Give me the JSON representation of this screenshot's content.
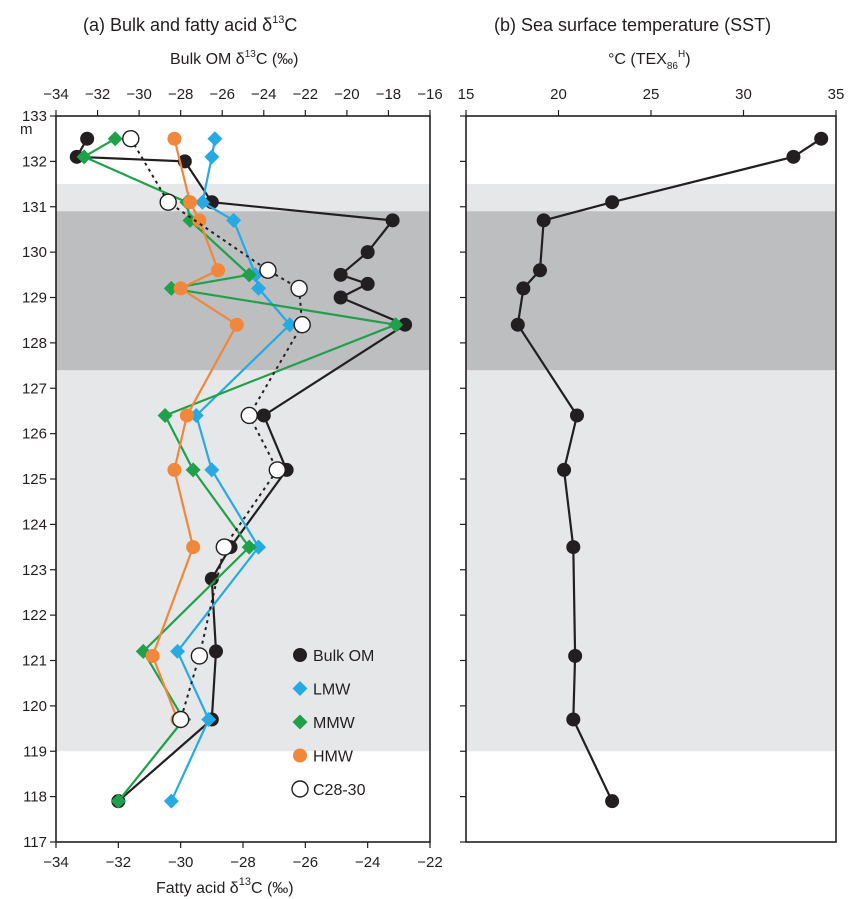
{
  "panel_a": {
    "title": "(a) Bulk and fatty acid δ",
    "title_sup": "13",
    "title_end": "C",
    "top_axis_label": "Bulk OM δ",
    "top_axis_sup": "13",
    "top_axis_end": "C (‰)",
    "bottom_axis_label": "Fatty acid δ",
    "bottom_axis_sup": "13",
    "bottom_axis_end": "C  (‰)",
    "depth_unit": "m"
  },
  "panel_b": {
    "title": "(b) Sea surface temperature (SST)",
    "top_axis_label": "°C (TEX",
    "top_axis_sub": "86",
    "top_axis_sup": "H",
    "top_axis_end": ")"
  },
  "legend": {
    "items": [
      {
        "label": "Bulk OM",
        "marker": "circle",
        "color": "#231f20"
      },
      {
        "label": "LMW",
        "marker": "diamond",
        "color": "#27aae1"
      },
      {
        "label": "MMW",
        "marker": "diamond",
        "color": "#1ea14a"
      },
      {
        "label": "HMW",
        "marker": "circle",
        "color": "#f1873a"
      },
      {
        "label": "C28-30",
        "marker": "open-circle",
        "color": "#231f20"
      }
    ]
  },
  "chart_data": [
    {
      "type": "line",
      "panel": "a",
      "title": "(a) Bulk and fatty acid δ13C",
      "y_label": "m",
      "y_range": [
        117,
        133
      ],
      "y_ticks": [
        117,
        118,
        119,
        120,
        121,
        122,
        123,
        124,
        125,
        126,
        127,
        128,
        129,
        130,
        131,
        132,
        133
      ],
      "x_top": {
        "label": "Bulk OM δ13C (‰)",
        "range": [
          -34,
          -16
        ],
        "ticks": [
          -34,
          -32,
          -30,
          -28,
          -26,
          -24,
          -22,
          -20,
          -18,
          -16
        ]
      },
      "x_bottom": {
        "label": "Fatty acid δ13C  (‰)",
        "range": [
          -34,
          -22
        ],
        "ticks": [
          -34,
          -32,
          -30,
          -28,
          -26,
          -24,
          -22
        ]
      },
      "shading": [
        {
          "from": 119,
          "to": 131.5,
          "color": "#e6e7e8"
        },
        {
          "from": 127.4,
          "to": 130.9,
          "color": "#bcbec0"
        }
      ],
      "series": [
        {
          "name": "Bulk OM",
          "axis": "top",
          "color": "#231f20",
          "marker": "circle",
          "line": "solid",
          "points": [
            [
              -32.5,
              132.5
            ],
            [
              -33.0,
              132.1
            ],
            [
              -27.8,
              132.0
            ],
            [
              -26.5,
              131.1
            ],
            [
              -17.8,
              130.7
            ],
            [
              -19.0,
              130.0
            ],
            [
              -20.3,
              129.5
            ],
            [
              -19.0,
              129.3
            ],
            [
              -20.3,
              129.0
            ],
            [
              -17.2,
              128.4
            ],
            [
              -24.0,
              126.4
            ],
            [
              -22.9,
              125.2
            ],
            [
              -25.6,
              123.5
            ],
            [
              -26.5,
              122.8
            ],
            [
              -26.3,
              121.2
            ],
            [
              -26.5,
              119.7
            ],
            [
              -31.0,
              117.9
            ]
          ]
        },
        {
          "name": "LMW",
          "axis": "bottom",
          "color": "#27aae1",
          "marker": "diamond",
          "line": "solid",
          "points": [
            [
              -28.9,
              132.5
            ],
            [
              -29.0,
              132.1
            ],
            [
              -29.3,
              131.1
            ],
            [
              -28.3,
              130.7
            ],
            [
              -27.6,
              129.5
            ],
            [
              -27.5,
              129.2
            ],
            [
              -26.5,
              128.4
            ],
            [
              -29.5,
              126.4
            ],
            [
              -29.0,
              125.2
            ],
            [
              -27.5,
              123.5
            ],
            [
              -30.1,
              121.2
            ],
            [
              -29.1,
              119.7
            ],
            [
              -30.3,
              117.9
            ]
          ]
        },
        {
          "name": "MMW",
          "axis": "bottom",
          "color": "#1ea14a",
          "marker": "diamond",
          "line": "solid",
          "points": [
            [
              -32.1,
              132.5
            ],
            [
              -33.1,
              132.1
            ],
            [
              -29.8,
              131.1
            ],
            [
              -29.7,
              130.7
            ],
            [
              -27.8,
              129.5
            ],
            [
              -30.3,
              129.2
            ],
            [
              -23.1,
              128.4
            ],
            [
              -30.5,
              126.4
            ],
            [
              -29.6,
              125.2
            ],
            [
              -27.8,
              123.5
            ],
            [
              -31.2,
              121.2
            ],
            [
              -29.9,
              119.7
            ],
            [
              -32.0,
              117.9
            ]
          ]
        },
        {
          "name": "HMW",
          "axis": "bottom",
          "color": "#f1873a",
          "marker": "circle",
          "line": "solid",
          "points": [
            [
              -30.2,
              132.5
            ],
            [
              -29.7,
              131.1
            ],
            [
              -29.4,
              130.7
            ],
            [
              -28.8,
              129.6
            ],
            [
              -30.0,
              129.2
            ],
            [
              -28.2,
              128.4
            ],
            [
              -29.8,
              126.4
            ],
            [
              -30.2,
              125.2
            ],
            [
              -29.6,
              123.5
            ],
            [
              -30.9,
              121.1
            ],
            [
              -30.1,
              119.7
            ]
          ]
        },
        {
          "name": "C28-30",
          "axis": "bottom",
          "color": "#231f20",
          "marker": "open-circle",
          "line": "dotted",
          "points": [
            [
              -31.6,
              132.5
            ],
            [
              -30.4,
              131.1
            ],
            [
              -27.2,
              129.6
            ],
            [
              -26.2,
              129.2
            ],
            [
              -26.1,
              128.4
            ],
            [
              -27.8,
              126.4
            ],
            [
              -26.9,
              125.2
            ],
            [
              -28.6,
              123.5
            ],
            [
              -29.4,
              121.1
            ],
            [
              -30.0,
              119.7
            ]
          ]
        }
      ]
    },
    {
      "type": "line",
      "panel": "b",
      "title": "(b) Sea surface temperature (SST)",
      "y_range": [
        117,
        133
      ],
      "x_top": {
        "label": "°C (TEX86H)",
        "range": [
          15,
          35
        ],
        "ticks": [
          15,
          20,
          25,
          30,
          35
        ]
      },
      "shading": [
        {
          "from": 119,
          "to": 131.5,
          "color": "#e6e7e8"
        },
        {
          "from": 127.4,
          "to": 130.9,
          "color": "#bcbec0"
        }
      ],
      "series": [
        {
          "name": "SST",
          "color": "#231f20",
          "marker": "circle",
          "line": "solid",
          "points": [
            [
              34.2,
              132.5
            ],
            [
              32.7,
              132.1
            ],
            [
              22.9,
              131.1
            ],
            [
              19.2,
              130.7
            ],
            [
              19.0,
              129.6
            ],
            [
              18.1,
              129.2
            ],
            [
              17.8,
              128.4
            ],
            [
              21.0,
              126.4
            ],
            [
              20.3,
              125.2
            ],
            [
              20.8,
              123.5
            ],
            [
              20.9,
              121.1
            ],
            [
              20.8,
              119.7
            ],
            [
              22.9,
              117.9
            ]
          ]
        }
      ]
    }
  ]
}
